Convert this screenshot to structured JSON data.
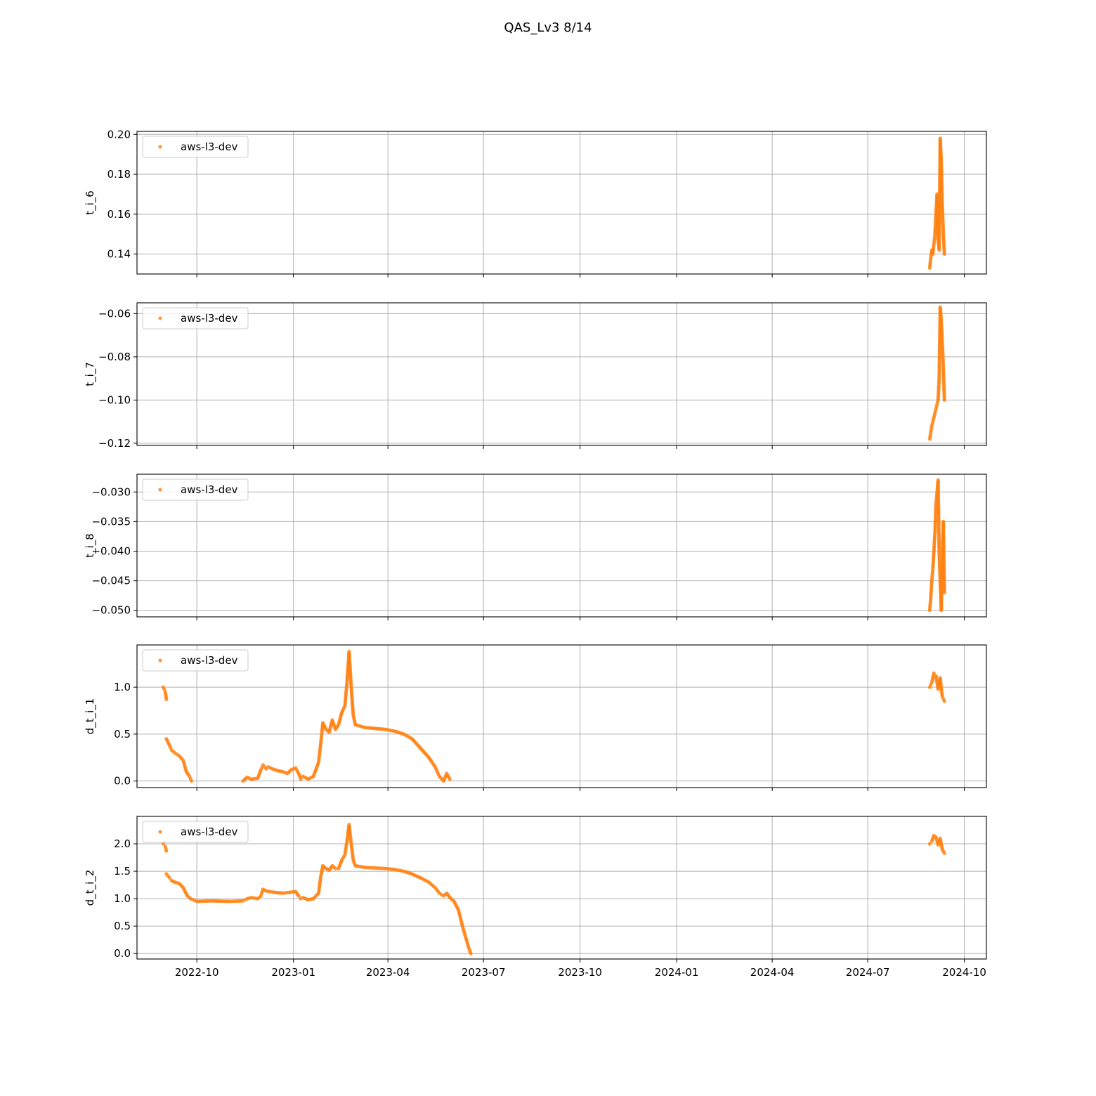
{
  "title": "QAS_Lv3 8/14",
  "colors": {
    "series": "#ff7f0e",
    "grid": "#b0b0b0"
  },
  "chart_data": [
    {
      "type": "scatter",
      "ylabel": "t_i_6",
      "series_name": "aws-l3-dev",
      "ylim": [
        0.13,
        0.2015
      ],
      "yticks": [
        0.14,
        0.16,
        0.18,
        0.2
      ],
      "ytick_labels": [
        "0.14",
        "0.16",
        "0.18",
        "0.20"
      ],
      "segments": [
        {
          "x": [
            "2024-08-29",
            "2024-08-30",
            "2024-08-31",
            "2024-09-01",
            "2024-09-02",
            "2024-09-03",
            "2024-09-04",
            "2024-09-05",
            "2024-09-06",
            "2024-09-07",
            "2024-09-08",
            "2024-09-09",
            "2024-09-10",
            "2024-09-11",
            "2024-09-12"
          ],
          "y": [
            0.133,
            0.138,
            0.142,
            0.14,
            0.145,
            0.15,
            0.16,
            0.17,
            0.147,
            0.142,
            0.198,
            0.187,
            0.165,
            0.15,
            0.14
          ]
        }
      ],
      "grid": true,
      "legend": "upper left"
    },
    {
      "type": "scatter",
      "ylabel": "t_i_7",
      "series_name": "aws-l3-dev",
      "ylim": [
        -0.121,
        -0.055
      ],
      "yticks": [
        -0.12,
        -0.1,
        -0.08,
        -0.06
      ],
      "ytick_labels": [
        "−0.12",
        "−0.10",
        "−0.08",
        "−0.06"
      ],
      "segments": [
        {
          "x": [
            "2024-08-29",
            "2024-08-30",
            "2024-08-31",
            "2024-09-01",
            "2024-09-02",
            "2024-09-03",
            "2024-09-04",
            "2024-09-05",
            "2024-09-06",
            "2024-09-07",
            "2024-09-08",
            "2024-09-09",
            "2024-09-10",
            "2024-09-11",
            "2024-09-12"
          ],
          "y": [
            -0.118,
            -0.115,
            -0.112,
            -0.11,
            -0.108,
            -0.106,
            -0.104,
            -0.102,
            -0.1,
            -0.09,
            -0.057,
            -0.063,
            -0.073,
            -0.085,
            -0.1
          ]
        }
      ],
      "grid": true,
      "legend": "upper left"
    },
    {
      "type": "scatter",
      "ylabel": "t_i_8",
      "series_name": "aws-l3-dev",
      "ylim": [
        -0.0511,
        -0.027
      ],
      "yticks": [
        -0.05,
        -0.045,
        -0.04,
        -0.035,
        -0.03
      ],
      "ytick_labels": [
        "−0.050",
        "−0.045",
        "−0.040",
        "−0.035",
        "−0.030"
      ],
      "segments": [
        {
          "x": [
            "2024-08-29",
            "2024-08-30",
            "2024-08-31",
            "2024-09-01",
            "2024-09-02",
            "2024-09-03",
            "2024-09-04",
            "2024-09-05",
            "2024-09-06",
            "2024-09-07",
            "2024-09-08",
            "2024-09-09",
            "2024-09-10",
            "2024-09-11",
            "2024-09-12"
          ],
          "y": [
            -0.05,
            -0.048,
            -0.045,
            -0.043,
            -0.04,
            -0.037,
            -0.032,
            -0.03,
            -0.028,
            -0.04,
            -0.045,
            -0.05,
            -0.042,
            -0.035,
            -0.047
          ]
        }
      ],
      "grid": true,
      "legend": "upper left"
    },
    {
      "type": "scatter",
      "ylabel": "d_t_i_1",
      "series_name": "aws-l3-dev",
      "ylim": [
        -0.07,
        1.45
      ],
      "yticks": [
        0.0,
        0.5,
        1.0
      ],
      "ytick_labels": [
        "0.0",
        "0.5",
        "1.0"
      ],
      "segments": [
        {
          "x": [
            "2022-08-30",
            "2022-09-01",
            "2022-09-02"
          ],
          "y": [
            1.0,
            0.95,
            0.87
          ]
        },
        {
          "x": [
            "2022-09-02",
            "2022-09-05",
            "2022-09-07",
            "2022-09-10",
            "2022-09-14",
            "2022-09-18",
            "2022-09-21",
            "2022-09-24",
            "2022-09-26"
          ],
          "y": [
            0.45,
            0.38,
            0.33,
            0.3,
            0.27,
            0.22,
            0.1,
            0.05,
            0.0
          ]
        },
        {
          "x": [
            "2022-11-14",
            "2022-11-18",
            "2022-11-22",
            "2022-11-28",
            "2022-12-01",
            "2022-12-03",
            "2022-12-06",
            "2022-12-08",
            "2022-12-12",
            "2022-12-17",
            "2022-12-22",
            "2022-12-26",
            "2022-12-30",
            "2023-01-03",
            "2023-01-06",
            "2023-01-08",
            "2023-01-10",
            "2023-01-15",
            "2023-01-20",
            "2023-01-25",
            "2023-01-27",
            "2023-01-29",
            "2023-02-01",
            "2023-02-04",
            "2023-02-07",
            "2023-02-10",
            "2023-02-13",
            "2023-02-16",
            "2023-02-19",
            "2023-02-21",
            "2023-02-23",
            "2023-02-25",
            "2023-02-27",
            "2023-03-01",
            "2023-03-10",
            "2023-03-20",
            "2023-03-30",
            "2023-04-08",
            "2023-04-16",
            "2023-04-24",
            "2023-05-02",
            "2023-05-10",
            "2023-05-16",
            "2023-05-20",
            "2023-05-24",
            "2023-05-27",
            "2023-05-30"
          ],
          "y": [
            0.0,
            0.04,
            0.02,
            0.03,
            0.12,
            0.17,
            0.13,
            0.15,
            0.13,
            0.11,
            0.1,
            0.08,
            0.12,
            0.14,
            0.08,
            0.02,
            0.05,
            0.02,
            0.05,
            0.2,
            0.4,
            0.62,
            0.55,
            0.52,
            0.65,
            0.55,
            0.6,
            0.73,
            0.8,
            1.05,
            1.38,
            1.0,
            0.7,
            0.6,
            0.57,
            0.56,
            0.55,
            0.53,
            0.5,
            0.45,
            0.35,
            0.25,
            0.15,
            0.05,
            0.0,
            0.08,
            0.02
          ]
        },
        {
          "x": [
            "2024-08-29",
            "2024-08-31",
            "2024-09-02",
            "2024-09-04",
            "2024-09-06",
            "2024-09-08",
            "2024-09-10",
            "2024-09-12"
          ],
          "y": [
            1.0,
            1.05,
            1.15,
            1.12,
            0.98,
            1.1,
            0.9,
            0.85
          ]
        }
      ],
      "grid": true,
      "legend": "upper left"
    },
    {
      "type": "scatter",
      "ylabel": "d_t_i_2",
      "series_name": "aws-l3-dev",
      "ylim": [
        -0.1,
        2.5
      ],
      "yticks": [
        0.0,
        0.5,
        1.0,
        1.5,
        2.0
      ],
      "ytick_labels": [
        "0.0",
        "0.5",
        "1.0",
        "1.5",
        "2.0"
      ],
      "segments": [
        {
          "x": [
            "2022-08-30",
            "2022-09-01",
            "2022-09-02"
          ],
          "y": [
            2.0,
            1.95,
            1.87
          ]
        },
        {
          "x": [
            "2022-09-02",
            "2022-09-05",
            "2022-09-07",
            "2022-09-10",
            "2022-09-14",
            "2022-09-18",
            "2022-09-22",
            "2022-09-25",
            "2022-10-01",
            "2022-10-15",
            "2022-11-01",
            "2022-11-14",
            "2022-11-18",
            "2022-11-22",
            "2022-11-28",
            "2022-12-01",
            "2022-12-03",
            "2022-12-06",
            "2022-12-12",
            "2022-12-22",
            "2022-12-30",
            "2023-01-03",
            "2023-01-06",
            "2023-01-08",
            "2023-01-10",
            "2023-01-15",
            "2023-01-20",
            "2023-01-25",
            "2023-01-27",
            "2023-01-29",
            "2023-02-01",
            "2023-02-04",
            "2023-02-07",
            "2023-02-10",
            "2023-02-13",
            "2023-02-16",
            "2023-02-19",
            "2023-02-21",
            "2023-02-23",
            "2023-02-25",
            "2023-02-27",
            "2023-03-01",
            "2023-03-10",
            "2023-03-20",
            "2023-03-30",
            "2023-04-08",
            "2023-04-16",
            "2023-04-24",
            "2023-05-02",
            "2023-05-10",
            "2023-05-16",
            "2023-05-20",
            "2023-05-24",
            "2023-05-27",
            "2023-05-30",
            "2023-06-03",
            "2023-06-07",
            "2023-06-11",
            "2023-06-14",
            "2023-06-17",
            "2023-06-19"
          ],
          "y": [
            1.45,
            1.38,
            1.33,
            1.3,
            1.28,
            1.2,
            1.05,
            1.0,
            0.95,
            0.96,
            0.95,
            0.96,
            1.0,
            1.02,
            1.0,
            1.05,
            1.17,
            1.14,
            1.12,
            1.1,
            1.12,
            1.13,
            1.05,
            1.0,
            1.02,
            0.98,
            1.0,
            1.1,
            1.4,
            1.6,
            1.55,
            1.52,
            1.6,
            1.55,
            1.55,
            1.7,
            1.8,
            2.05,
            2.35,
            2.0,
            1.7,
            1.6,
            1.57,
            1.56,
            1.55,
            1.53,
            1.5,
            1.45,
            1.38,
            1.3,
            1.2,
            1.1,
            1.05,
            1.1,
            1.02,
            0.95,
            0.8,
            0.5,
            0.3,
            0.1,
            0.0
          ]
        },
        {
          "x": [
            "2024-08-29",
            "2024-08-31",
            "2024-09-02",
            "2024-09-04",
            "2024-09-06",
            "2024-09-08",
            "2024-09-10",
            "2024-09-12"
          ],
          "y": [
            2.0,
            2.05,
            2.15,
            2.12,
            1.98,
            2.1,
            1.9,
            1.83
          ]
        }
      ],
      "grid": true,
      "legend": "upper left"
    }
  ],
  "xaxis": {
    "range": [
      "2022-08-05",
      "2024-10-22"
    ],
    "ticks": [
      "2022-10-01",
      "2023-01-01",
      "2023-04-01",
      "2023-07-01",
      "2023-10-01",
      "2024-01-01",
      "2024-04-01",
      "2024-07-01",
      "2024-10-01"
    ],
    "tick_labels": [
      "2022-10",
      "2023-01",
      "2023-04",
      "2023-07",
      "2023-10",
      "2024-01",
      "2024-04",
      "2024-07",
      "2024-10"
    ]
  }
}
